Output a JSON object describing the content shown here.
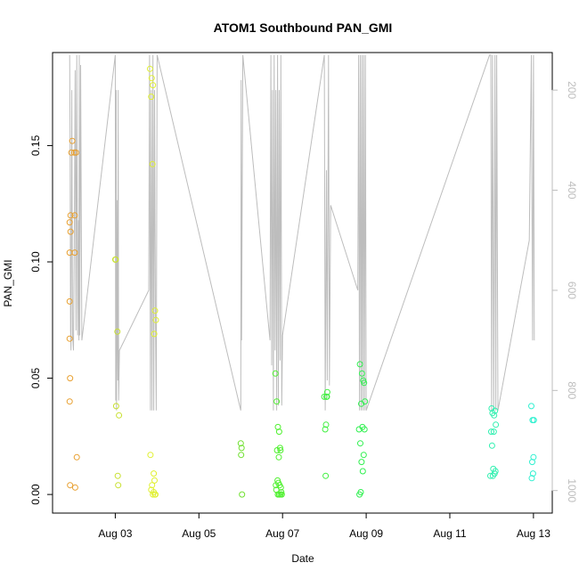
{
  "chart_data": {
    "type": "scatter",
    "title": "ATOM1 Southbound PAN_GMI",
    "xlabel": "Date",
    "ylabel": "PAN_GMI",
    "x_ticks": [
      "Aug 03",
      "Aug 05",
      "Aug 07",
      "Aug 09",
      "Aug 11",
      "Aug 13"
    ],
    "x_tick_days": [
      3,
      5,
      7,
      9,
      11,
      13
    ],
    "xlim": [
      1.5,
      13.45
    ],
    "ylim": [
      -0.008,
      0.19
    ],
    "y_ticks": [
      0.0,
      0.05,
      0.1,
      0.15
    ],
    "y_tick_labels": [
      "0.00",
      "0.05",
      "0.10",
      "0.15"
    ],
    "right_axis": {
      "ticks": [
        200,
        400,
        600,
        800,
        1000
      ],
      "tick_labels": [
        "200",
        "400",
        "600",
        "800",
        "1000"
      ],
      "lim": [
        1045,
        125
      ],
      "color": "#bdbdbd"
    },
    "grid": false,
    "series": [
      {
        "color": "#e8a030",
        "x": [
          1.97,
          1.95,
          1.93,
          1.91,
          1.93,
          1.91,
          1.91,
          1.91,
          1.92,
          1.91,
          1.92,
          2.04,
          2.08,
          2.02,
          2.03,
          2.03,
          2.06
        ],
        "y": [
          0.152,
          0.147,
          0.12,
          0.117,
          0.113,
          0.104,
          0.083,
          0.067,
          0.05,
          0.04,
          0.004,
          0.003,
          0.016,
          0.147,
          0.12,
          0.104,
          0.147
        ]
      },
      {
        "color": "#c8e030",
        "x": [
          3.0,
          3.05,
          3.02,
          3.09,
          3.06,
          3.07,
          3.01
        ],
        "y": [
          0.101,
          0.07,
          0.038,
          0.034,
          0.008,
          0.004,
          0.101
        ]
      },
      {
        "color": "#e0f030",
        "x": [
          3.83,
          3.87,
          3.9,
          3.86,
          3.89,
          3.95,
          3.97,
          3.93,
          3.84,
          3.92,
          3.94,
          3.88,
          3.86,
          3.92,
          3.95,
          3.9,
          3.96
        ],
        "y": [
          0.183,
          0.179,
          0.176,
          0.171,
          0.142,
          0.079,
          0.075,
          0.069,
          0.017,
          0.009,
          0.006,
          0.004,
          0.002,
          0.001,
          0.0,
          0.0,
          0.0
        ]
      },
      {
        "color": "#70e030",
        "x": [
          6.0,
          6.02,
          6.01,
          6.03
        ],
        "y": [
          0.022,
          0.02,
          0.017,
          0.0
        ]
      },
      {
        "color": "#50f030",
        "x": [
          6.83,
          6.86,
          6.89,
          6.92,
          6.94,
          6.87,
          6.91,
          6.95,
          6.88,
          6.9,
          6.84,
          6.93,
          6.96,
          6.85,
          6.97,
          6.89,
          6.92,
          6.95,
          6.98
        ],
        "y": [
          0.052,
          0.04,
          0.029,
          0.027,
          0.02,
          0.019,
          0.016,
          0.019,
          0.006,
          0.005,
          0.004,
          0.004,
          0.003,
          0.002,
          0.001,
          0.0,
          0.0,
          0.0,
          0.0
        ]
      },
      {
        "color": "#40f040",
        "x": [
          8.0,
          8.05,
          8.07,
          8.02,
          8.04,
          8.06,
          8.03
        ],
        "y": [
          0.042,
          0.042,
          0.044,
          0.028,
          0.03,
          0.042,
          0.008
        ]
      },
      {
        "color": "#30f050",
        "x": [
          8.85,
          8.9,
          8.93,
          8.95,
          8.97,
          8.88,
          8.91,
          8.83,
          8.86,
          8.94,
          8.89,
          8.92,
          8.96,
          8.87,
          8.84
        ],
        "y": [
          0.056,
          0.052,
          0.049,
          0.048,
          0.04,
          0.039,
          0.029,
          0.028,
          0.022,
          0.017,
          0.014,
          0.01,
          0.028,
          0.001,
          0.0
        ]
      },
      {
        "color": "#30f0b0",
        "x": [
          12.0,
          12.02,
          12.06,
          12.08,
          12.1,
          12.05,
          12.01,
          12.04,
          12.09,
          12.07,
          11.97,
          12.03,
          11.99
        ],
        "y": [
          0.037,
          0.035,
          0.034,
          0.036,
          0.03,
          0.027,
          0.021,
          0.011,
          0.01,
          0.009,
          0.008,
          0.008,
          0.027
        ]
      },
      {
        "color": "#30f0d0",
        "x": [
          12.95,
          12.98,
          13.0,
          12.97,
          12.99,
          12.96,
          13.01
        ],
        "y": [
          0.038,
          0.032,
          0.016,
          0.014,
          0.009,
          0.007,
          0.032
        ]
      }
    ],
    "depth_track": {
      "color": "#bdbdbd",
      "x": [
        1.91,
        1.92,
        1.93,
        1.94,
        1.96,
        1.98,
        2.0,
        2.02,
        2.04,
        2.06,
        2.08,
        2.1,
        2.12,
        2.13,
        2.14,
        2.15,
        2.16,
        2.17,
        2.2,
        3.0,
        3.01,
        3.02,
        3.03,
        3.04,
        3.05,
        3.06,
        3.07,
        3.08,
        3.1,
        3.8,
        3.82,
        3.84,
        3.86,
        3.88,
        3.9,
        3.92,
        3.94,
        3.96,
        3.98,
        4.0,
        6.0,
        6.01,
        6.02,
        6.05,
        6.7,
        6.72,
        6.74,
        6.76,
        6.78,
        6.8,
        6.82,
        6.84,
        6.86,
        6.88,
        6.9,
        6.92,
        6.94,
        6.96,
        6.98,
        7.0,
        8.0,
        8.02,
        8.05,
        8.07,
        8.1,
        8.12,
        8.15,
        8.8,
        8.82,
        8.84,
        8.86,
        8.88,
        8.9,
        8.92,
        8.94,
        8.96,
        8.98,
        9.0,
        11.95,
        11.98,
        12.0,
        12.02,
        12.05,
        12.08,
        12.1,
        12.12,
        12.15,
        12.9,
        12.95,
        12.98,
        13.0,
        13.02
      ],
      "depth": [
        130,
        300,
        680,
        720,
        200,
        690,
        720,
        500,
        160,
        680,
        130,
        690,
        460,
        700,
        130,
        690,
        470,
        150,
        700,
        130,
        820,
        200,
        840,
        420,
        690,
        780,
        200,
        820,
        720,
        600,
        130,
        840,
        200,
        840,
        130,
        840,
        200,
        650,
        840,
        130,
        840,
        180,
        700,
        130,
        700,
        130,
        750,
        200,
        840,
        130,
        720,
        200,
        840,
        130,
        830,
        200,
        740,
        130,
        830,
        690,
        130,
        840,
        360,
        780,
        130,
        790,
        430,
        600,
        130,
        840,
        130,
        840,
        130,
        840,
        130,
        840,
        130,
        840,
        130,
        130,
        840,
        130,
        840,
        130,
        840,
        130,
        840,
        500,
        130,
        700,
        130,
        700,
        500
      ]
    }
  }
}
